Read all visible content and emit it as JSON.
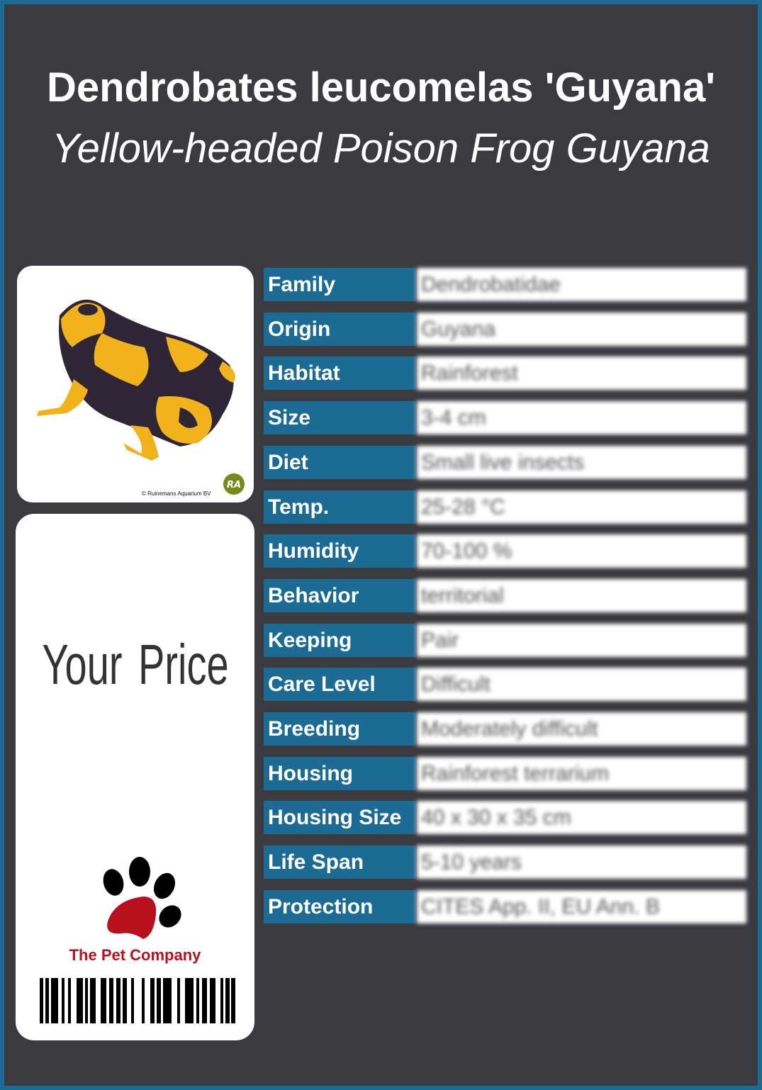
{
  "header": {
    "title": "Dendrobates leucomelas 'Guyana'",
    "subtitle": "Yellow-headed Poison Frog Guyana"
  },
  "photo": {
    "copyright": "© Ruinemans Aquarium BV",
    "logo_text": "RA"
  },
  "price_card": {
    "price_label": "Your  Price",
    "brand": "The Pet Company"
  },
  "colors": {
    "background": "#3a3a3f",
    "accent": "#1b6b94",
    "brand_red": "#b8101c"
  },
  "rows": [
    {
      "label": "Family",
      "value": "Dendrobatidae"
    },
    {
      "label": "Origin",
      "value": "Guyana"
    },
    {
      "label": "Habitat",
      "value": "Rainforest"
    },
    {
      "label": "Size",
      "value": "3-4 cm"
    },
    {
      "label": "Diet",
      "value": "Small live insects"
    },
    {
      "label": "Temp.",
      "value": "25-28 °C"
    },
    {
      "label": "Humidity",
      "value": "70-100 %"
    },
    {
      "label": "Behavior",
      "value": "territorial"
    },
    {
      "label": "Keeping",
      "value": "Pair"
    },
    {
      "label": "Care Level",
      "value": "Difficult"
    },
    {
      "label": "Breeding",
      "value": "Moderately difficult"
    },
    {
      "label": "Housing",
      "value": "Rainforest terrarium"
    },
    {
      "label": "Housing Size",
      "value": "40 x 30 x 35 cm"
    },
    {
      "label": "Life Span",
      "value": "5-10 years"
    },
    {
      "label": "Protection",
      "value": "CITES App. II, EU Ann. B"
    }
  ]
}
